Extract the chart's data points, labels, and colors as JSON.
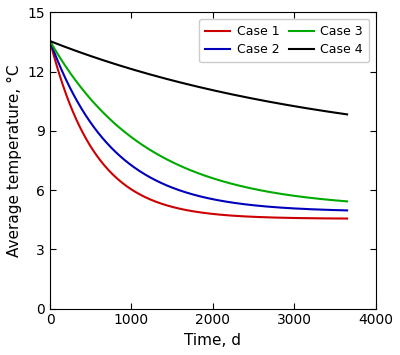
{
  "title": "",
  "xlabel": "Time, d",
  "ylabel": "Average temperature, °C",
  "xlim": [
    0,
    4000
  ],
  "ylim": [
    0,
    15
  ],
  "xticks": [
    0,
    1000,
    2000,
    3000,
    4000
  ],
  "yticks": [
    0,
    3,
    6,
    9,
    12,
    15
  ],
  "cases": [
    {
      "label": "Case 1",
      "color": "#cc0000",
      "start": 13.55,
      "end": 4.55,
      "k": 0.0018,
      "alpha": 1.0,
      "curve_type": "exp_power"
    },
    {
      "label": "Case 2",
      "color": "#0000bb",
      "start": 13.55,
      "end": 4.9,
      "k": 0.0013,
      "alpha": 1.0,
      "curve_type": "exp_power"
    },
    {
      "label": "Case 3",
      "color": "#00aa00",
      "start": 13.55,
      "end": 5.05,
      "k": 0.00085,
      "alpha": 1.0,
      "curve_type": "exp_power"
    },
    {
      "label": "Case 4",
      "color": "#000000",
      "start": 13.55,
      "end": 7.75,
      "k": 0.00028,
      "alpha": 1.0,
      "curve_type": "exp_power"
    }
  ],
  "legend_entries_row1": [
    {
      "label": "Case 1",
      "color": "#cc0000"
    },
    {
      "label": "Case 2",
      "color": "#0000bb"
    }
  ],
  "legend_entries_row2": [
    {
      "label": "Case 3",
      "color": "#00aa00"
    },
    {
      "label": "Case 4",
      "color": "#000000"
    }
  ],
  "figure_width": 4.0,
  "figure_height": 3.55,
  "dpi": 100,
  "linewidth": 1.5,
  "background_color": "#ffffff",
  "spine_color": "#000000"
}
